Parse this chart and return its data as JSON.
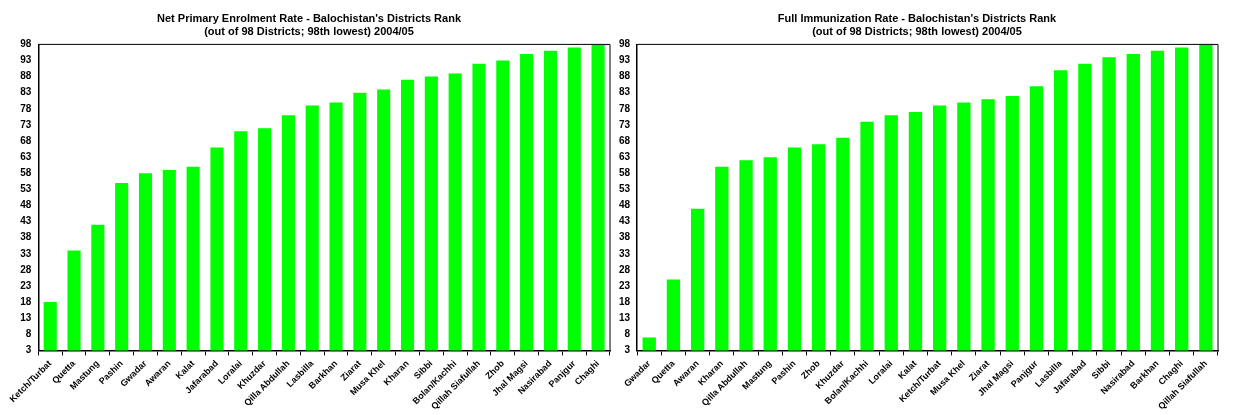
{
  "chart_data": [
    {
      "type": "bar",
      "title": "Net Primary Enrolment Rate - Balochistan's Districts Rank",
      "subtitle": "(out of 98 Districts; 98th lowest) 2004/05",
      "categories": [
        "Ketch/Turbat",
        "Quetta",
        "Mastung",
        "Pashin",
        "Gwadar",
        "Awaran",
        "Kalat",
        "Jafarabad",
        "Loralai",
        "Khuzdar",
        "Qilla Abdullah",
        "Lasbilla",
        "Barkhan",
        "Ziarat",
        "Musa Khel",
        "Kharan",
        "Sibbi",
        "Bolan/Kachhi",
        "Qillah Siafullah",
        "Zhob",
        "Jhal Magsi",
        "Nasirabad",
        "Panjgur",
        "Chaghi"
      ],
      "values": [
        18,
        34,
        42,
        55,
        58,
        59,
        60,
        66,
        71,
        72,
        76,
        79,
        80,
        83,
        84,
        87,
        88,
        89,
        92,
        93,
        95,
        96,
        97,
        98
      ],
      "color": "#00ff00",
      "ylim": [
        3,
        98
      ],
      "yticks": [
        3,
        8,
        13,
        18,
        23,
        28,
        33,
        38,
        43,
        48,
        53,
        58,
        63,
        68,
        73,
        78,
        83,
        88,
        93,
        98
      ],
      "grid": false,
      "legend": false
    },
    {
      "type": "bar",
      "title": "Full Immunization Rate - Balochistan's Districts Rank",
      "subtitle": "(out of 98 Districts; 98th lowest) 2004/05",
      "categories": [
        "Gwadar",
        "Quetta",
        "Awaran",
        "Kharan",
        "Qilla Abdullah",
        "Mastung",
        "Pashin",
        "Zhob",
        "Khuzdar",
        "Bolan/Kachhi",
        "Loralai",
        "Kalat",
        "Ketch/Turbat",
        "Musa Khel",
        "Ziarat",
        "Jhal Magsi",
        "Panjgur",
        "Lasbilla",
        "Jafarabad",
        "Sibbi",
        "Nasirabad",
        "Barkhan",
        "Chaghi",
        "Qillah Siafullah"
      ],
      "values": [
        7,
        25,
        47,
        60,
        62,
        63,
        66,
        67,
        69,
        74,
        76,
        77,
        79,
        80,
        81,
        82,
        85,
        90,
        92,
        94,
        95,
        96,
        97,
        98
      ],
      "color": "#00ff00",
      "ylim": [
        3,
        98
      ],
      "yticks": [
        3,
        8,
        13,
        18,
        23,
        28,
        33,
        38,
        43,
        48,
        53,
        58,
        63,
        68,
        73,
        78,
        83,
        88,
        93,
        98
      ],
      "grid": false,
      "legend": false
    }
  ]
}
